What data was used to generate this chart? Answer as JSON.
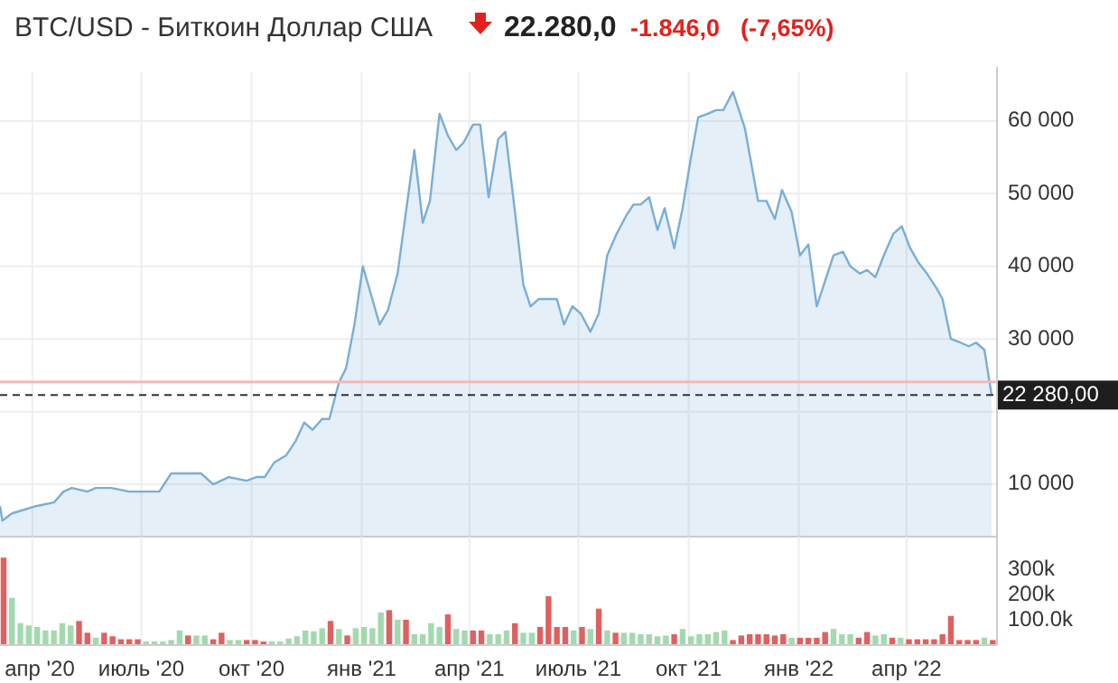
{
  "chart_data": [
    {
      "type": "area",
      "title": "BTC/USD - Биткоин Доллар США",
      "annotations": [
        "22.280,0",
        "-1.846,0",
        "(-7,65%)"
      ],
      "color": "#7aaed6",
      "x": [
        "2020-03-05",
        "2020-03-07",
        "2020-03-15",
        "2020-03-25",
        "2020-04-04",
        "2020-04-19",
        "2020-04-27",
        "2020-05-04",
        "2020-05-17",
        "2020-05-24",
        "2020-06-06",
        "2020-06-21",
        "2020-07-04",
        "2020-07-16",
        "2020-07-26",
        "2020-08-08",
        "2020-08-20",
        "2020-08-30",
        "2020-09-12",
        "2020-09-27",
        "2020-10-05",
        "2020-10-12",
        "2020-10-20",
        "2020-10-30",
        "2020-11-07",
        "2020-11-14",
        "2020-11-21",
        "2020-11-29",
        "2020-12-05",
        "2020-12-13",
        "2020-12-19",
        "2020-12-26",
        "2021-01-02",
        "2021-01-16",
        "2021-01-23",
        "2021-01-31",
        "2021-02-14",
        "2021-02-21",
        "2021-02-27",
        "2021-03-07",
        "2021-03-14",
        "2021-03-21",
        "2021-03-27",
        "2021-04-04",
        "2021-04-10",
        "2021-04-17",
        "2021-04-25",
        "2021-05-01",
        "2021-05-09",
        "2021-05-16",
        "2021-05-22",
        "2021-05-29",
        "2021-06-10",
        "2021-06-13",
        "2021-06-19",
        "2021-06-26",
        "2021-07-03",
        "2021-07-11",
        "2021-07-18",
        "2021-07-25",
        "2021-08-02",
        "2021-08-10",
        "2021-08-16",
        "2021-08-22",
        "2021-08-29",
        "2021-09-05",
        "2021-09-11",
        "2021-09-19",
        "2021-09-26",
        "2021-10-03",
        "2021-10-09",
        "2021-10-17",
        "2021-10-24",
        "2021-10-30",
        "2021-11-07",
        "2021-11-17",
        "2021-11-28",
        "2021-12-05",
        "2021-12-12",
        "2021-12-18",
        "2021-12-26",
        "2022-01-02",
        "2022-01-09",
        "2022-01-16",
        "2022-01-30",
        "2022-02-07",
        "2022-02-13",
        "2022-02-21",
        "2022-02-27",
        "2022-03-06",
        "2022-03-13",
        "2022-03-21",
        "2022-03-28",
        "2022-04-04",
        "2022-04-11",
        "2022-04-18",
        "2022-04-26",
        "2022-05-01",
        "2022-05-08",
        "2022-05-16",
        "2022-05-23",
        "2022-05-29",
        "2022-06-05",
        "2022-06-11"
      ],
      "values": [
        7000,
        5000,
        6000,
        6500,
        7000,
        7500,
        9000,
        9500,
        9000,
        9500,
        9500,
        9000,
        9000,
        9000,
        11500,
        11500,
        11500,
        10000,
        11000,
        10500,
        11000,
        11000,
        13000,
        14000,
        16000,
        18500,
        17500,
        19000,
        19000,
        24000,
        26000,
        32000,
        40000,
        32000,
        34000,
        39000,
        56000,
        46000,
        49000,
        61000,
        58000,
        56000,
        57000,
        59500,
        59500,
        49500,
        57500,
        58500,
        47500,
        37500,
        34500,
        35500,
        35500,
        35500,
        32000,
        34500,
        33500,
        31000,
        33500,
        41500,
        44500,
        47000,
        48500,
        48500,
        49500,
        45000,
        48000,
        42500,
        48000,
        55000,
        60500,
        61000,
        61500,
        61500,
        64000,
        59000,
        49000,
        49000,
        46500,
        50500,
        47500,
        41500,
        43000,
        34500,
        41500,
        42000,
        40000,
        39000,
        39500,
        38500,
        41500,
        44500,
        45500,
        42500,
        40500,
        39000,
        37000,
        35500,
        30000,
        29500,
        29000,
        29500,
        28500,
        22280
      ],
      "xlim": [
        "2020-03-05",
        "2022-06-14"
      ],
      "xticks": [
        {
          "value": "2020-04-01",
          "label": null
        },
        {
          "value": "2020-07-01",
          "label": null
        },
        {
          "value": "2020-10-01",
          "label": null
        },
        {
          "value": "2021-01-01",
          "label": null
        },
        {
          "value": "2021-04-01",
          "label": null
        },
        {
          "value": "2021-07-01",
          "label": null
        },
        {
          "value": "2021-10-01",
          "label": null
        },
        {
          "value": "2022-01-01",
          "label": null
        },
        {
          "value": "2022-04-01",
          "label": null
        }
      ],
      "ylim": [
        2800,
        66700
      ],
      "yticks": [
        {
          "value": 10000,
          "label": "10 000"
        },
        {
          "value": 20000,
          "label": null
        },
        {
          "value": 30000,
          "label": "30 000"
        },
        {
          "value": 40000,
          "label": "40 000"
        },
        {
          "value": 50000,
          "label": "50 000"
        },
        {
          "value": 60000,
          "label": "60 000"
        }
      ],
      "ref_lines": [
        {
          "axis": "y",
          "value": 24100,
          "color": "#f4b8b8",
          "line_style": "solid"
        },
        {
          "axis": "y",
          "value": 22280,
          "label": "22 280,00",
          "color": "#333333",
          "line_style": "dashed"
        }
      ],
      "grid": true,
      "tick_labels": "y"
    },
    {
      "type": "bar",
      "x": [
        "2020-03-08",
        "2020-03-15",
        "2020-03-22",
        "2020-03-29",
        "2020-04-05",
        "2020-04-12",
        "2020-04-19",
        "2020-04-26",
        "2020-05-03",
        "2020-05-10",
        "2020-05-17",
        "2020-05-24",
        "2020-05-31",
        "2020-06-07",
        "2020-06-14",
        "2020-06-21",
        "2020-06-28",
        "2020-07-05",
        "2020-07-12",
        "2020-07-19",
        "2020-07-26",
        "2020-08-02",
        "2020-08-09",
        "2020-08-16",
        "2020-08-23",
        "2020-08-30",
        "2020-09-06",
        "2020-09-13",
        "2020-09-20",
        "2020-09-27",
        "2020-10-04",
        "2020-10-11",
        "2020-10-18",
        "2020-10-25",
        "2020-11-01",
        "2020-11-08",
        "2020-11-15",
        "2020-11-22",
        "2020-11-29",
        "2020-12-06",
        "2020-12-13",
        "2020-12-20",
        "2020-12-27",
        "2021-01-03",
        "2021-01-10",
        "2021-01-17",
        "2021-01-24",
        "2021-01-31",
        "2021-02-07",
        "2021-02-14",
        "2021-02-21",
        "2021-02-28",
        "2021-03-07",
        "2021-03-14",
        "2021-03-21",
        "2021-03-28",
        "2021-04-04",
        "2021-04-11",
        "2021-04-18",
        "2021-04-25",
        "2021-05-02",
        "2021-05-09",
        "2021-05-16",
        "2021-05-23",
        "2021-05-30",
        "2021-06-06",
        "2021-06-13",
        "2021-06-20",
        "2021-06-27",
        "2021-07-04",
        "2021-07-11",
        "2021-07-18",
        "2021-07-25",
        "2021-08-01",
        "2021-08-08",
        "2021-08-15",
        "2021-08-22",
        "2021-08-29",
        "2021-09-05",
        "2021-09-12",
        "2021-09-19",
        "2021-09-26",
        "2021-10-03",
        "2021-10-10",
        "2021-10-17",
        "2021-10-24",
        "2021-10-31",
        "2021-11-07",
        "2021-11-14",
        "2021-11-21",
        "2021-11-28",
        "2021-12-05",
        "2021-12-12",
        "2021-12-19",
        "2021-12-26",
        "2022-01-02",
        "2022-01-09",
        "2022-01-16",
        "2022-01-23",
        "2022-01-30",
        "2022-02-06",
        "2022-02-13",
        "2022-02-20",
        "2022-02-27",
        "2022-03-06",
        "2022-03-13",
        "2022-03-20",
        "2022-03-27",
        "2022-04-03",
        "2022-04-10",
        "2022-04-17",
        "2022-04-24",
        "2022-05-01",
        "2022-05-08",
        "2022-05-15",
        "2022-05-22",
        "2022-05-29",
        "2022-06-05",
        "2022-06-12"
      ],
      "values": [
        348000,
        188000,
        87000,
        78000,
        72000,
        58000,
        58000,
        87000,
        78000,
        96000,
        49000,
        29000,
        49000,
        35000,
        23000,
        23000,
        23000,
        14000,
        14000,
        14000,
        20000,
        58000,
        38000,
        38000,
        38000,
        23000,
        49000,
        20000,
        20000,
        20000,
        20000,
        14000,
        14000,
        14000,
        26000,
        35000,
        58000,
        55000,
        67000,
        96000,
        64000,
        38000,
        67000,
        72000,
        67000,
        130000,
        139000,
        101000,
        101000,
        43000,
        43000,
        87000,
        72000,
        122000,
        64000,
        58000,
        58000,
        58000,
        43000,
        43000,
        58000,
        87000,
        49000,
        49000,
        72000,
        194000,
        72000,
        72000,
        58000,
        72000,
        64000,
        145000,
        58000,
        49000,
        49000,
        49000,
        43000,
        43000,
        35000,
        38000,
        43000,
        64000,
        35000,
        43000,
        43000,
        52000,
        58000,
        20000,
        38000,
        43000,
        43000,
        43000,
        38000,
        43000,
        29000,
        29000,
        29000,
        29000,
        52000,
        64000,
        43000,
        43000,
        29000,
        52000,
        38000,
        43000,
        29000,
        29000,
        23000,
        23000,
        23000,
        23000,
        43000,
        116000,
        20000,
        20000,
        20000,
        29000,
        20000
      ],
      "colors": [
        "#e06060",
        "#a3d9ae",
        "#a3d9ae",
        "#a3d9ae",
        "#a3d9ae",
        "#a3d9ae",
        "#a3d9ae",
        "#a3d9ae",
        "#a3d9ae",
        "#e06060",
        "#e06060",
        "#a3d9ae",
        "#e06060",
        "#e06060",
        "#e06060",
        "#e06060",
        "#e06060",
        "#a3d9ae",
        "#a3d9ae",
        "#a3d9ae",
        "#a3d9ae",
        "#a3d9ae",
        "#e06060",
        "#a3d9ae",
        "#a3d9ae",
        "#e06060",
        "#e06060",
        "#a3d9ae",
        "#a3d9ae",
        "#e06060",
        "#e06060",
        "#e06060",
        "#a3d9ae",
        "#a3d9ae",
        "#a3d9ae",
        "#a3d9ae",
        "#a3d9ae",
        "#a3d9ae",
        "#a3d9ae",
        "#e06060",
        "#a3d9ae",
        "#e06060",
        "#a3d9ae",
        "#a3d9ae",
        "#a3d9ae",
        "#a3d9ae",
        "#e06060",
        "#a3d9ae",
        "#e06060",
        "#a3d9ae",
        "#a3d9ae",
        "#a3d9ae",
        "#a3d9ae",
        "#e06060",
        "#a3d9ae",
        "#a3d9ae",
        "#e06060",
        "#e06060",
        "#a3d9ae",
        "#a3d9ae",
        "#a3d9ae",
        "#e06060",
        "#a3d9ae",
        "#a3d9ae",
        "#e06060",
        "#e06060",
        "#e06060",
        "#e06060",
        "#a3d9ae",
        "#e06060",
        "#a3d9ae",
        "#e06060",
        "#a3d9ae",
        "#e06060",
        "#a3d9ae",
        "#a3d9ae",
        "#a3d9ae",
        "#a3d9ae",
        "#a3d9ae",
        "#a3d9ae",
        "#e06060",
        "#a3d9ae",
        "#a3d9ae",
        "#a3d9ae",
        "#a3d9ae",
        "#a3d9ae",
        "#a3d9ae",
        "#e06060",
        "#e06060",
        "#e06060",
        "#e06060",
        "#e06060",
        "#e06060",
        "#e06060",
        "#a3d9ae",
        "#e06060",
        "#e06060",
        "#e06060",
        "#e06060",
        "#a3d9ae",
        "#a3d9ae",
        "#a3d9ae",
        "#e06060",
        "#e06060",
        "#a3d9ae",
        "#a3d9ae",
        "#e06060",
        "#a3d9ae",
        "#e06060",
        "#e06060",
        "#e06060",
        "#e06060",
        "#e06060",
        "#e06060",
        "#e06060",
        "#e06060",
        "#e06060",
        "#a3d9ae",
        "#e06060"
      ],
      "xlim": [
        "2020-03-05",
        "2022-06-14"
      ],
      "xticks": [
        {
          "value": "2020-04-01",
          "label": "апр '20"
        },
        {
          "value": "2020-07-01",
          "label": "июль '20"
        },
        {
          "value": "2020-10-01",
          "label": "окт '20"
        },
        {
          "value": "2021-01-01",
          "label": "янв '21"
        },
        {
          "value": "2021-04-01",
          "label": "апр '21"
        },
        {
          "value": "2021-07-01",
          "label": "июль '21"
        },
        {
          "value": "2021-10-01",
          "label": "окт '21"
        },
        {
          "value": "2022-01-01",
          "label": "янв '22"
        },
        {
          "value": "2022-04-01",
          "label": "апр '22"
        }
      ],
      "ylim": [
        0,
        410000
      ],
      "yticks": [
        {
          "value": 100000,
          "label": "100.0k"
        },
        {
          "value": 200000,
          "label": "200k"
        },
        {
          "value": 300000,
          "label": "300k"
        }
      ],
      "grid": "x"
    }
  ]
}
